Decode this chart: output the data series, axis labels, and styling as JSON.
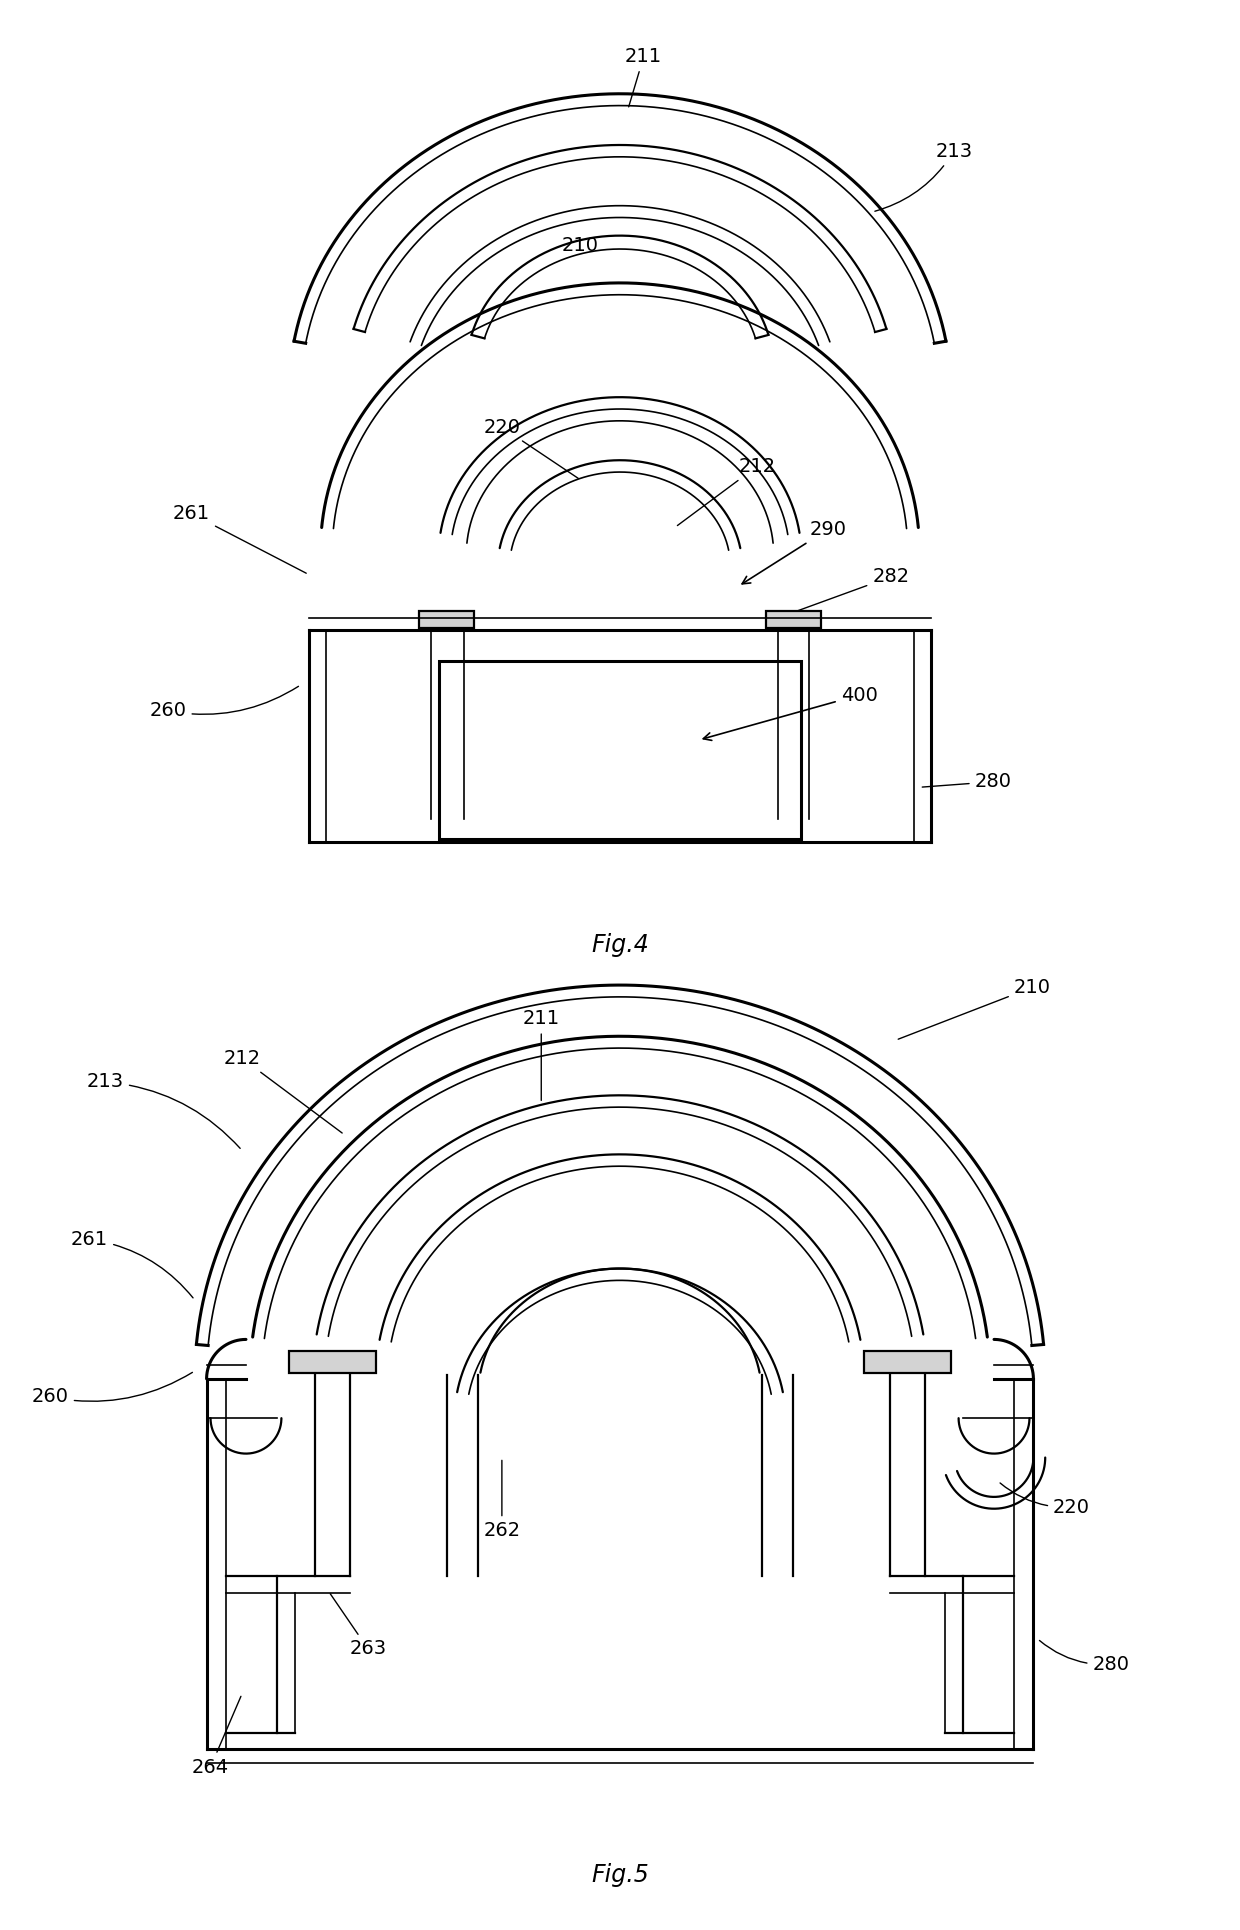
{
  "fig_title_4": "Fig.4",
  "fig_title_5": "Fig.5",
  "bg_color": "#ffffff",
  "lw_thick": 2.2,
  "lw_med": 1.6,
  "lw_thin": 1.2,
  "fs_label": 14,
  "fs_title": 17
}
